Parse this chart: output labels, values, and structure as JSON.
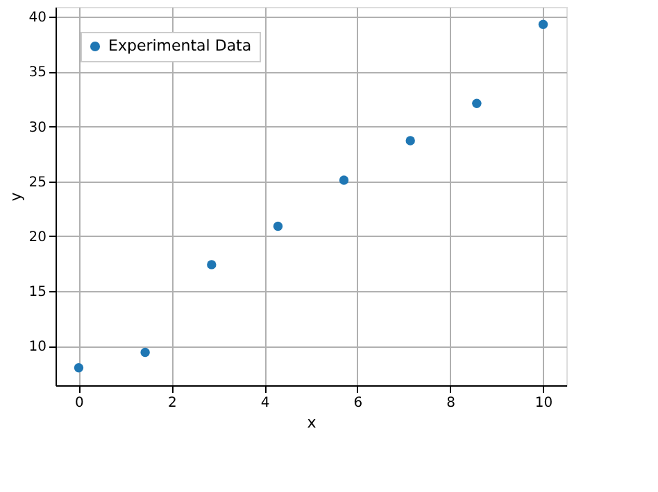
{
  "chart_data": {
    "type": "scatter",
    "xlabel": "x",
    "ylabel": "y",
    "x": [
      0,
      1.43,
      2.86,
      4.29,
      5.71,
      7.14,
      8.57,
      10
    ],
    "series": [
      {
        "name": "Experimental Data",
        "color": "#1f77b4",
        "values": [
          8.0,
          9.4,
          17.4,
          20.9,
          25.1,
          28.7,
          32.1,
          39.3
        ]
      }
    ],
    "xlim": [
      -0.5,
      10.5
    ],
    "ylim": [
      6.4,
      40.9
    ],
    "xticks": [
      0,
      2,
      4,
      6,
      8,
      10
    ],
    "yticks": [
      10,
      15,
      20,
      25,
      30,
      35,
      40
    ],
    "grid": true,
    "legend": "top left",
    "marker": "circle"
  }
}
